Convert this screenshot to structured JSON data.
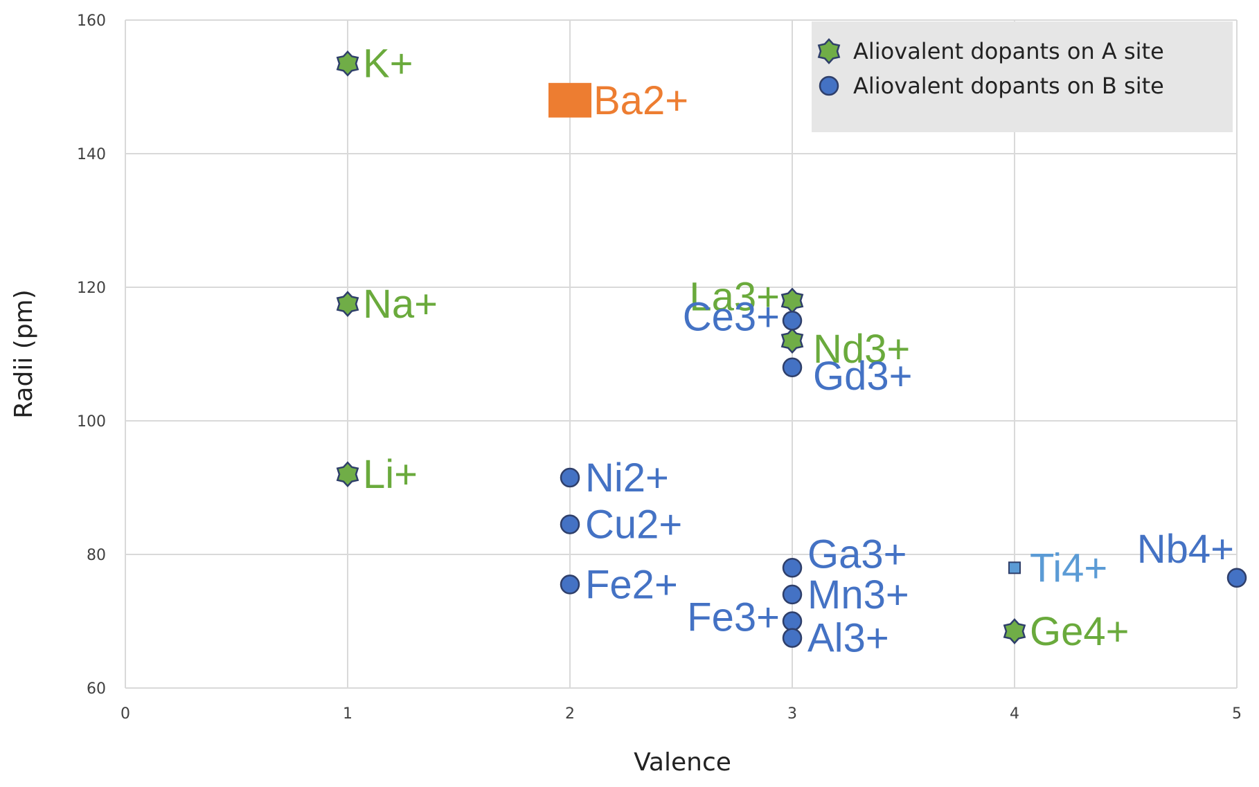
{
  "chart_data": {
    "type": "scatter",
    "xlabel": "Valence",
    "ylabel": "Radii (pm)",
    "xlim": [
      0,
      5
    ],
    "ylim": [
      60,
      160
    ],
    "x_ticks": [
      "0",
      "1",
      "2",
      "3",
      "4",
      "5"
    ],
    "y_ticks": [
      "60",
      "80",
      "100",
      "120",
      "140",
      "160"
    ],
    "grid": true,
    "legend_position": "top-right",
    "legend": [
      {
        "name": "Aliovalent dopants on A site",
        "marker": "star"
      },
      {
        "name": "Aliovalent dopants on B site",
        "marker": "circle"
      }
    ],
    "colors": {
      "a_site_fill": "#70ad47",
      "a_site_text": "#6aaa3c",
      "b_site_fill": "#4472c4",
      "b_site_text": "#4472c4",
      "ba_fill": "#ed7d31",
      "ti_fill": "#5b9bd5",
      "marker_stroke": "#2f3f6a",
      "grid": "#d9d9d9",
      "legend_bg": "#e6e6e6"
    },
    "series": [
      {
        "name": "Aliovalent dopants on A site",
        "marker": "star",
        "points": [
          {
            "label": "K+",
            "x": 1,
            "y": 153.5,
            "label_pos": "right"
          },
          {
            "label": "Na+",
            "x": 1,
            "y": 117.5,
            "label_pos": "right"
          },
          {
            "label": "Li+",
            "x": 1,
            "y": 92,
            "label_pos": "right"
          },
          {
            "label": "La3+",
            "x": 3,
            "y": 118,
            "label_pos": "left"
          },
          {
            "label": "Nd3+",
            "x": 3,
            "y": 112,
            "label_pos": "right-below"
          },
          {
            "label": "Ge4+",
            "x": 4,
            "y": 68.5,
            "label_pos": "right"
          }
        ]
      },
      {
        "name": "Aliovalent dopants on B site",
        "marker": "circle",
        "points": [
          {
            "label": "Ni2+",
            "x": 2,
            "y": 91.5,
            "label_pos": "right"
          },
          {
            "label": "Cu2+",
            "x": 2,
            "y": 84.5,
            "label_pos": "right"
          },
          {
            "label": "Fe2+",
            "x": 2,
            "y": 75.5,
            "label_pos": "right"
          },
          {
            "label": "Ce3+",
            "x": 3,
            "y": 115,
            "label_pos": "left"
          },
          {
            "label": "Gd3+",
            "x": 3,
            "y": 108,
            "label_pos": "right-below"
          },
          {
            "label": "Ga3+",
            "x": 3,
            "y": 78,
            "label_pos": "right-above"
          },
          {
            "label": "Mn3+",
            "x": 3,
            "y": 74,
            "label_pos": "right"
          },
          {
            "label": "Fe3+",
            "x": 3,
            "y": 70,
            "label_pos": "left"
          },
          {
            "label": "Al3+",
            "x": 3,
            "y": 67.5,
            "label_pos": "right"
          },
          {
            "label": "Nb4+",
            "x": 5,
            "y": 76.5,
            "label_pos": "left-above"
          }
        ]
      },
      {
        "name": "Ba2+",
        "marker": "square-large",
        "points": [
          {
            "label": "Ba2+",
            "x": 2,
            "y": 148,
            "label_pos": "right"
          }
        ]
      },
      {
        "name": "Ti4+",
        "marker": "square-small",
        "points": [
          {
            "label": "Ti4+",
            "x": 4,
            "y": 78,
            "label_pos": "right"
          }
        ]
      }
    ]
  }
}
